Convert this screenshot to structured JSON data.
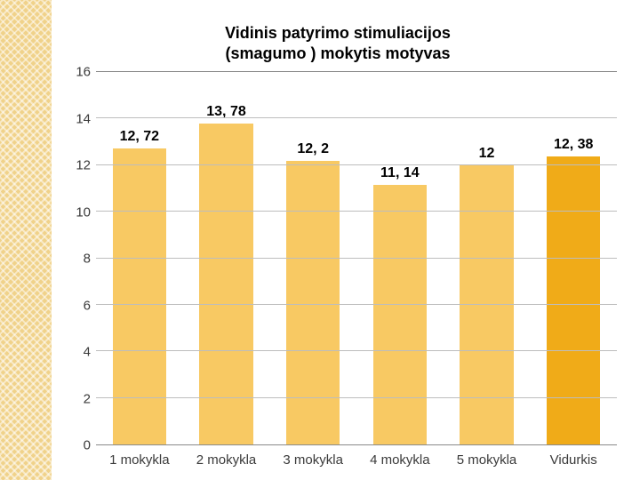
{
  "title_line1": "Vidinis patyrimo stimuliacijos",
  "title_line2": "(smagumo ) mokytis motyvas",
  "chart": {
    "type": "bar",
    "ylim": [
      0,
      16
    ],
    "ytick_step": 2,
    "yticks": [
      "0",
      "2",
      "4",
      "6",
      "8",
      "10",
      "12",
      "14",
      "16"
    ],
    "categories": [
      "1 mokykla",
      "2 mokykla",
      "3 mokykla",
      "4 mokykla",
      "5 mokykla",
      "Vidurkis"
    ],
    "values": [
      12.72,
      13.78,
      12.2,
      11.14,
      12,
      12.38
    ],
    "value_labels": [
      "12, 72",
      "13, 78",
      "12, 2",
      "11, 14",
      "12",
      "12, 38"
    ],
    "bar_colors": [
      "#f8c963",
      "#f8c963",
      "#f8c963",
      "#f8c963",
      "#f8c963",
      "#f0ab18"
    ],
    "grid_color": "#bdbdbd",
    "axis_color": "#8a8a8a",
    "background_color": "#ffffff",
    "bar_width_pct": 62,
    "title_fontsize": 18,
    "label_fontsize": 16,
    "tick_fontsize": 15
  },
  "side_pattern_color": "#f0d28a"
}
